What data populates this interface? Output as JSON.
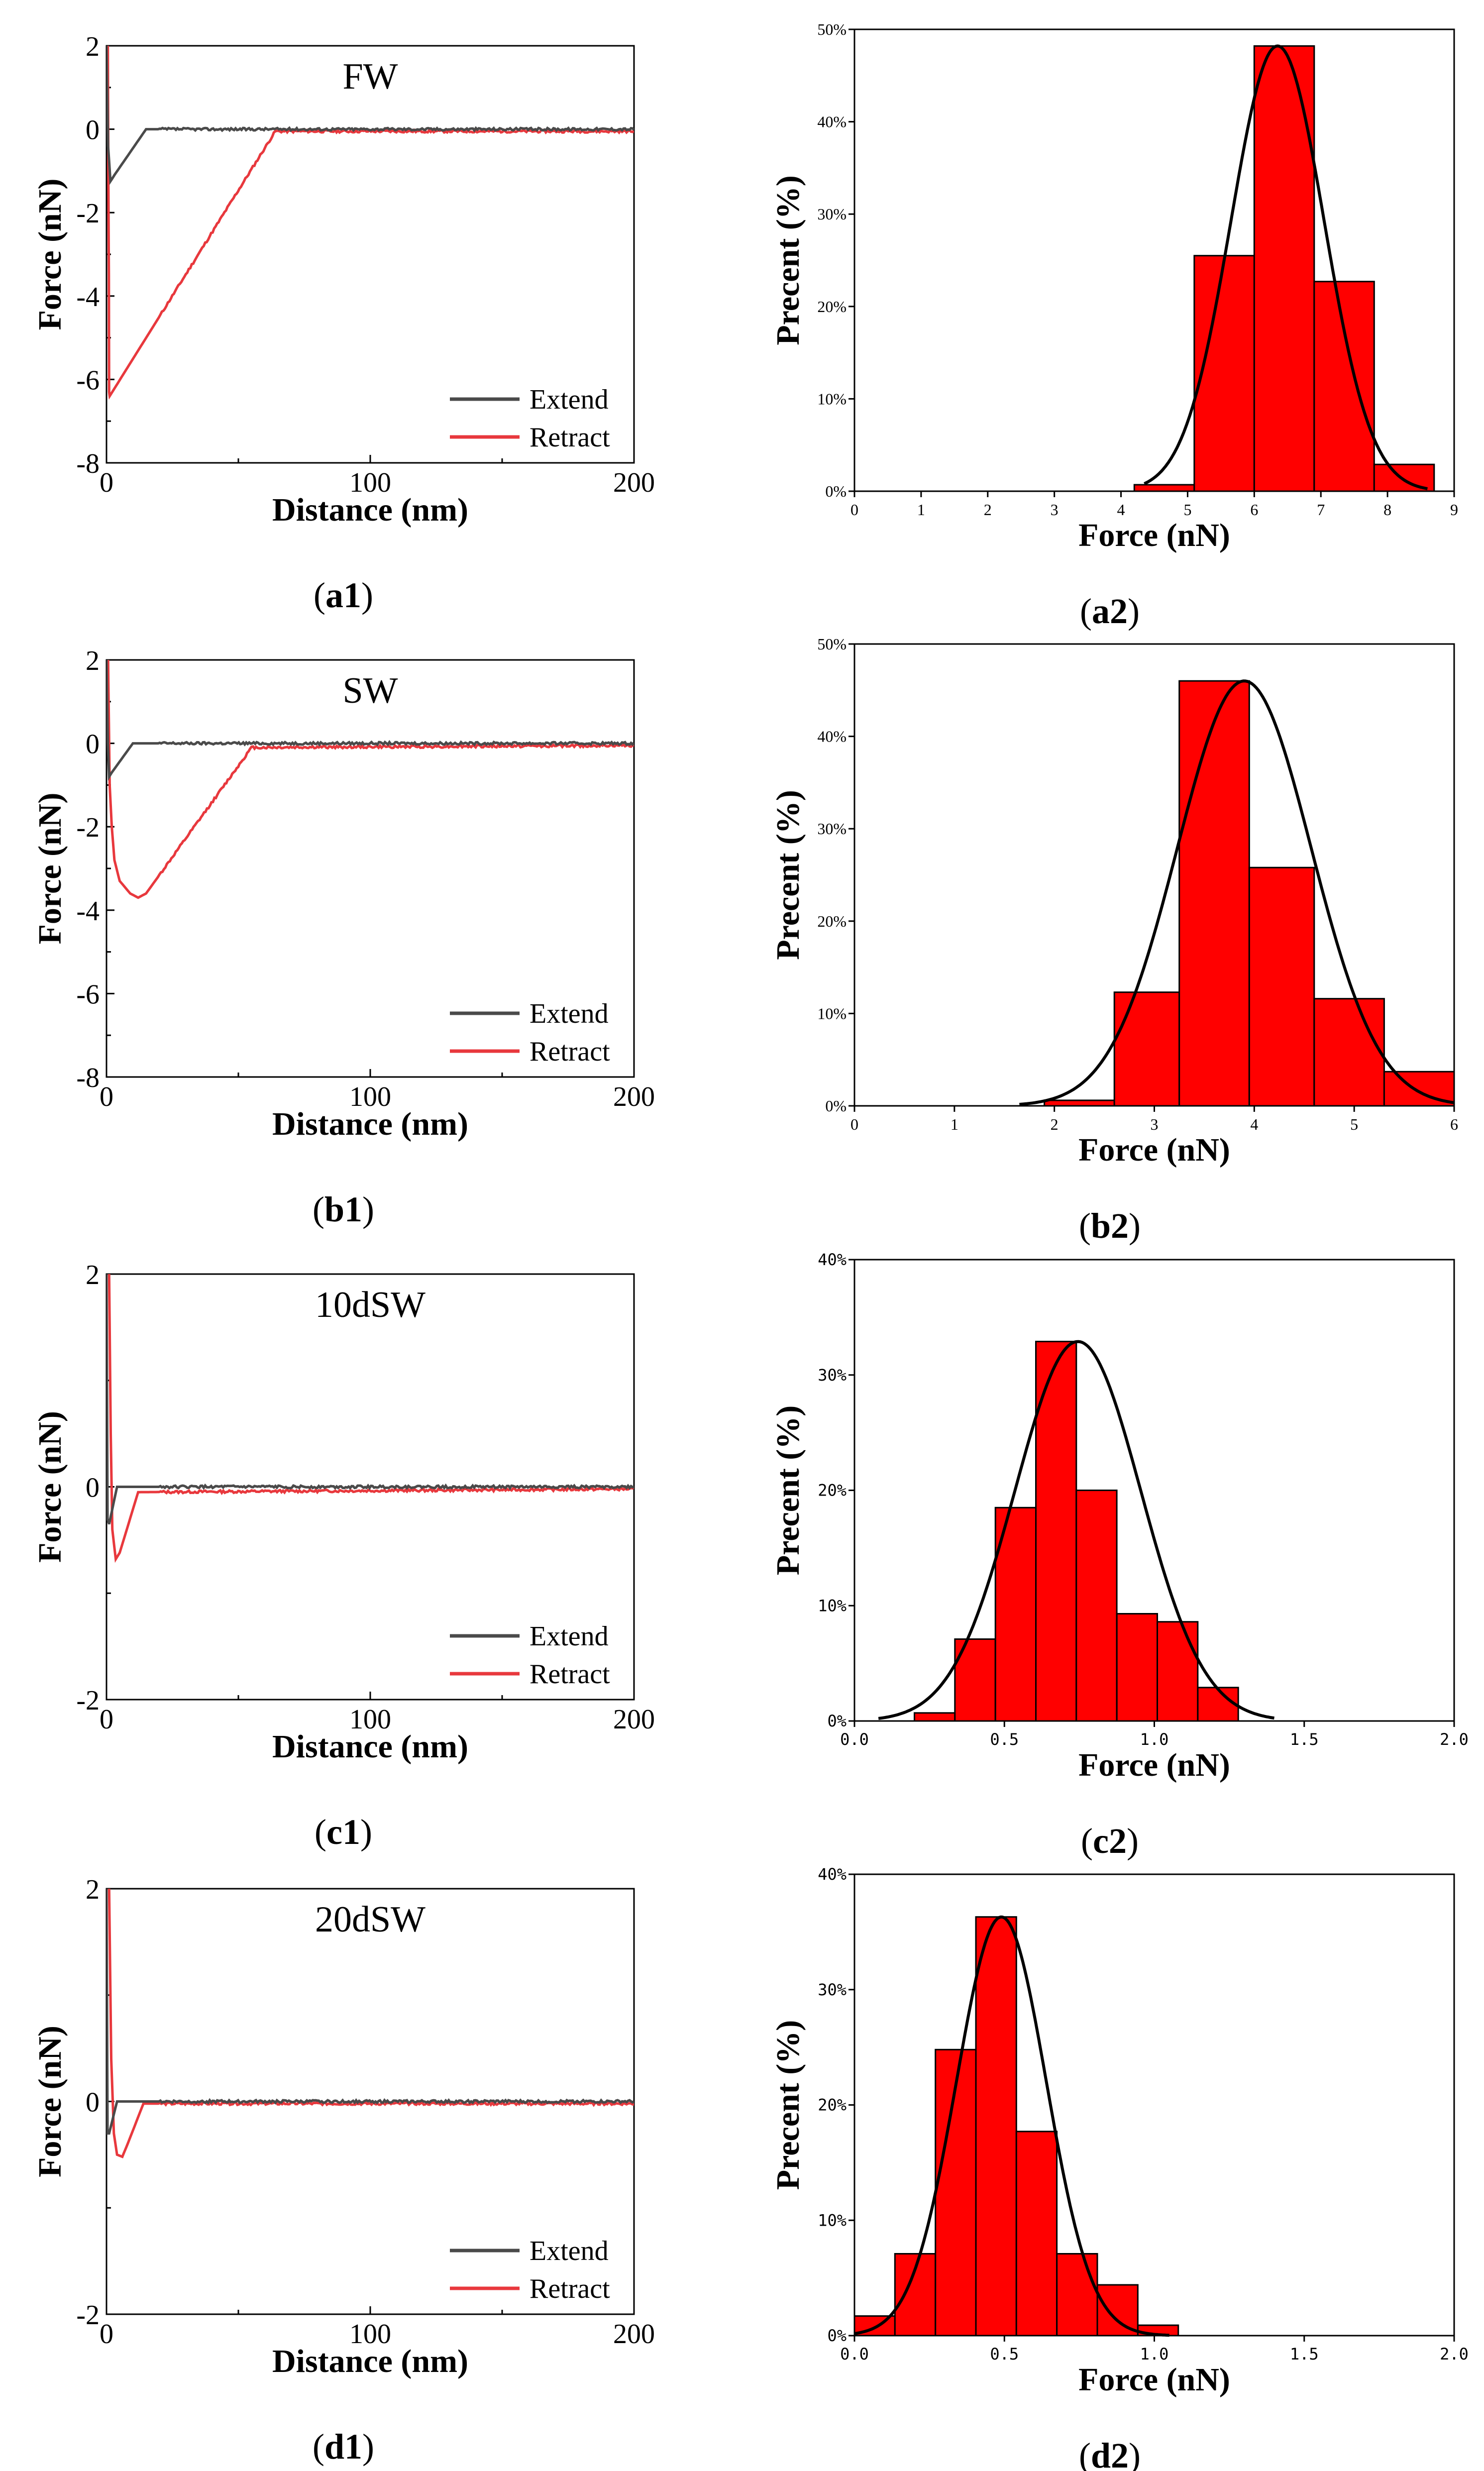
{
  "figure": {
    "left_panels": [
      {
        "id": "a1",
        "sample": "FW",
        "xlabel": "Distance (nm)",
        "ylabel": "Force (nN)",
        "ylim": [
          -8,
          2
        ],
        "yticks": [
          "2",
          "0",
          "-2",
          "-4",
          "-6",
          "-8"
        ],
        "xlim": [
          0,
          200
        ],
        "xticks": [
          "0",
          "100",
          "200"
        ],
        "legend": [
          "Extend",
          "Retract"
        ],
        "caption_prefix": "(",
        "caption_main": "a1",
        "caption_suffix": ")",
        "extend_curve": [
          [
            0,
            2.0
          ],
          [
            0.6,
            -0.4
          ],
          [
            1.5,
            -1.25
          ],
          [
            3,
            -1.1
          ],
          [
            15,
            0.0
          ],
          [
            200,
            0.0
          ]
        ],
        "retract_curve": [
          [
            0.5,
            2.0
          ],
          [
            0.7,
            -1.0
          ],
          [
            0.9,
            -3.5
          ],
          [
            1.0,
            -6.3
          ],
          [
            1.2,
            -6.4
          ],
          [
            64,
            -0.05
          ],
          [
            200,
            -0.05
          ]
        ]
      },
      {
        "id": "b1",
        "sample": "SW",
        "xlabel": "Distance (nm)",
        "ylabel": "Force (nN)",
        "ylim": [
          -8,
          2
        ],
        "yticks": [
          "2",
          "0",
          "-2",
          "-4",
          "-6",
          "-8"
        ],
        "xlim": [
          0,
          200
        ],
        "xticks": [
          "0",
          "100",
          "200"
        ],
        "legend": [
          "Extend",
          "Retract"
        ],
        "caption_prefix": "(",
        "caption_main": "b1",
        "caption_suffix": ")",
        "extend_curve": [
          [
            0,
            2.0
          ],
          [
            0.5,
            0.0
          ],
          [
            1,
            -0.8
          ],
          [
            2,
            -0.7
          ],
          [
            10,
            0.0
          ],
          [
            200,
            0.0
          ]
        ],
        "retract_curve": [
          [
            0.6,
            2.0
          ],
          [
            1.2,
            -1.0
          ],
          [
            2,
            -2.0
          ],
          [
            3,
            -2.8
          ],
          [
            5,
            -3.3
          ],
          [
            9,
            -3.6
          ],
          [
            12,
            -3.7
          ],
          [
            15,
            -3.6
          ],
          [
            55,
            -0.1
          ],
          [
            200,
            -0.05
          ]
        ]
      },
      {
        "id": "c1",
        "sample": "10dSW",
        "xlabel": "Distance (nm)",
        "ylabel": "Force (nN)",
        "ylim": [
          -2,
          2
        ],
        "yticks": [
          "2",
          "0",
          "-2"
        ],
        "xlim": [
          0,
          200
        ],
        "xticks": [
          "0",
          "100",
          "200"
        ],
        "legend": [
          "Extend",
          "Retract"
        ],
        "caption_prefix": "(",
        "caption_main": "c1",
        "caption_suffix": ")",
        "extend_curve": [
          [
            0,
            2.0
          ],
          [
            0.4,
            -0.3
          ],
          [
            1.0,
            -0.35
          ],
          [
            4,
            0.0
          ],
          [
            200,
            0.0
          ]
        ],
        "retract_curve": [
          [
            1.0,
            2.0
          ],
          [
            1.6,
            0.5
          ],
          [
            2.2,
            -0.4
          ],
          [
            3.5,
            -0.68
          ],
          [
            5,
            -0.62
          ],
          [
            12,
            -0.05
          ],
          [
            200,
            -0.02
          ]
        ]
      },
      {
        "id": "d1",
        "sample": "20dSW",
        "xlabel": "Distance (nm)",
        "ylabel": "Force (nN)",
        "ylim": [
          -2,
          2
        ],
        "yticks": [
          "2",
          "0",
          "-2"
        ],
        "xlim": [
          0,
          200
        ],
        "xticks": [
          "0",
          "100",
          "200"
        ],
        "legend": [
          "Extend",
          "Retract"
        ],
        "caption_prefix": "(",
        "caption_main": "d1",
        "caption_suffix": ")",
        "extend_curve": [
          [
            0,
            2.0
          ],
          [
            0.4,
            -0.3
          ],
          [
            1.0,
            -0.3
          ],
          [
            4,
            0.0
          ],
          [
            200,
            0.0
          ]
        ],
        "retract_curve": [
          [
            1.0,
            2.0
          ],
          [
            1.8,
            0.4
          ],
          [
            2.8,
            -0.3
          ],
          [
            4,
            -0.5
          ],
          [
            6,
            -0.52
          ],
          [
            8,
            -0.4
          ],
          [
            14,
            -0.02
          ],
          [
            200,
            -0.02
          ]
        ]
      }
    ],
    "right_panels": [
      {
        "id": "a2",
        "tick_font": "serif",
        "xlabel": "Force (nN)",
        "ylabel": "Precent (%)",
        "xlim": [
          0,
          9
        ],
        "xticks": [
          "0",
          "1",
          "2",
          "3",
          "4",
          "5",
          "6",
          "7",
          "8",
          "9"
        ],
        "ylim": [
          0,
          50
        ],
        "yticks": [
          "0%",
          "10%",
          "20%",
          "30%",
          "40%",
          "50%"
        ],
        "caption_prefix": "(",
        "caption_main": "a2",
        "caption_suffix": ")",
        "bars": [
          {
            "x0": 4.2,
            "x1": 5.1,
            "value": 0.7
          },
          {
            "x0": 5.1,
            "x1": 6.0,
            "value": 25.5
          },
          {
            "x0": 6.0,
            "x1": 6.9,
            "value": 48.2
          },
          {
            "x0": 6.9,
            "x1": 7.8,
            "value": 22.7
          },
          {
            "x0": 7.8,
            "x1": 8.7,
            "value": 2.9
          }
        ],
        "fit": {
          "mean": 6.35,
          "sigma": 0.7,
          "peak": 48.2,
          "from": 4.35,
          "to": 8.6
        }
      },
      {
        "id": "b2",
        "tick_font": "serif",
        "xlabel": "Force (nN)",
        "ylabel": "Precent (%)",
        "xlim": [
          0,
          6
        ],
        "xticks": [
          "0",
          "1",
          "2",
          "3",
          "4",
          "5",
          "6"
        ],
        "ylim": [
          0,
          50
        ],
        "yticks": [
          "0%",
          "10%",
          "20%",
          "30%",
          "40%",
          "50%"
        ],
        "caption_prefix": "(",
        "caption_main": "b2",
        "caption_suffix": ")",
        "bars": [
          {
            "x0": 1.9,
            "x1": 2.6,
            "value": 0.6
          },
          {
            "x0": 2.6,
            "x1": 3.25,
            "value": 12.3
          },
          {
            "x0": 3.25,
            "x1": 3.95,
            "value": 46.0
          },
          {
            "x0": 3.95,
            "x1": 4.6,
            "value": 25.8
          },
          {
            "x0": 4.6,
            "x1": 5.3,
            "value": 11.6
          },
          {
            "x0": 5.3,
            "x1": 6.0,
            "value": 3.7
          }
        ],
        "fit": {
          "mean": 3.9,
          "sigma": 0.67,
          "peak": 46.0,
          "from": 1.65,
          "to": 6.0
        }
      },
      {
        "id": "c2",
        "tick_font": "mono",
        "xlabel": "Force (nN)",
        "ylabel": "Precent (%)",
        "xlim": [
          0,
          2
        ],
        "xticks": [
          "0.0",
          "0.5",
          "1.0",
          "1.5",
          "2.0"
        ],
        "ylim": [
          0,
          40
        ],
        "yticks": [
          "0%",
          "10%",
          "20%",
          "30%",
          "40%"
        ],
        "caption_prefix": "(",
        "caption_main": "c2",
        "caption_suffix": ")",
        "bars": [
          {
            "x0": 0.2,
            "x1": 0.335,
            "value": 0.7
          },
          {
            "x0": 0.335,
            "x1": 0.47,
            "value": 7.1
          },
          {
            "x0": 0.47,
            "x1": 0.605,
            "value": 18.5
          },
          {
            "x0": 0.605,
            "x1": 0.74,
            "value": 32.9
          },
          {
            "x0": 0.74,
            "x1": 0.875,
            "value": 20.0
          },
          {
            "x0": 0.875,
            "x1": 1.01,
            "value": 9.3
          },
          {
            "x0": 1.01,
            "x1": 1.145,
            "value": 8.6
          },
          {
            "x0": 1.145,
            "x1": 1.28,
            "value": 2.9
          }
        ],
        "fit": {
          "mean": 0.745,
          "sigma": 0.21,
          "peak": 32.9,
          "from": 0.08,
          "to": 1.4
        }
      },
      {
        "id": "d2",
        "tick_font": "mono",
        "xlabel": "Force (nN)",
        "ylabel": "Precent (%)",
        "xlim": [
          0,
          2
        ],
        "xticks": [
          "0.0",
          "0.5",
          "1.0",
          "1.5",
          "2.0"
        ],
        "ylim": [
          0,
          40
        ],
        "yticks": [
          "0%",
          "10%",
          "20%",
          "30%",
          "40%"
        ],
        "caption_prefix": "(",
        "caption_main": "d2",
        "caption_suffix": ")",
        "bars": [
          {
            "x0": 0.0,
            "x1": 0.135,
            "value": 1.7
          },
          {
            "x0": 0.135,
            "x1": 0.27,
            "value": 7.1
          },
          {
            "x0": 0.27,
            "x1": 0.405,
            "value": 24.8
          },
          {
            "x0": 0.405,
            "x1": 0.54,
            "value": 36.3
          },
          {
            "x0": 0.54,
            "x1": 0.675,
            "value": 17.7
          },
          {
            "x0": 0.675,
            "x1": 0.81,
            "value": 7.1
          },
          {
            "x0": 0.81,
            "x1": 0.945,
            "value": 4.4
          },
          {
            "x0": 0.945,
            "x1": 1.08,
            "value": 0.9
          }
        ],
        "fit": {
          "mean": 0.49,
          "sigma": 0.15,
          "peak": 36.3,
          "from": 0.0,
          "to": 1.05
        }
      }
    ]
  },
  "colors": {
    "bar_fill": "#ff0000",
    "bar_edge": "#000000",
    "extend_line": "#4a4a4a",
    "retract_line": "#e8383d",
    "fit_line": "#000000",
    "axis": "#000000"
  },
  "chart_data": [
    {
      "type": "line",
      "panel": "a1",
      "title": "FW",
      "xlabel": "Distance (nm)",
      "ylabel": "Force (nN)",
      "xlim": [
        0,
        200
      ],
      "ylim": [
        -8,
        2
      ],
      "series": [
        {
          "name": "Extend",
          "x": [
            0,
            0.6,
            1.5,
            3,
            15,
            200
          ],
          "y": [
            2.0,
            -0.4,
            -1.25,
            -1.1,
            0.0,
            0.0
          ]
        },
        {
          "name": "Retract",
          "x": [
            0.5,
            1.0,
            1.2,
            64,
            200
          ],
          "y": [
            2.0,
            -6.3,
            -6.4,
            -0.05,
            -0.05
          ]
        }
      ]
    },
    {
      "type": "bar",
      "panel": "a2",
      "xlabel": "Force (nN)",
      "ylabel": "Precent (%)",
      "xlim": [
        0,
        9
      ],
      "ylim": [
        0,
        50
      ],
      "categories": [
        "4.2-5.1",
        "5.1-6.0",
        "6.0-6.9",
        "6.9-7.8",
        "7.8-8.7"
      ],
      "values": [
        0.7,
        25.5,
        48.2,
        22.7,
        2.9
      ],
      "fit": "Gaussian, mean ≈ 6.35 nN"
    },
    {
      "type": "line",
      "panel": "b1",
      "title": "SW",
      "xlabel": "Distance (nm)",
      "ylabel": "Force (nN)",
      "xlim": [
        0,
        200
      ],
      "ylim": [
        -8,
        2
      ],
      "series": [
        {
          "name": "Extend",
          "x": [
            0,
            1,
            2,
            10,
            200
          ],
          "y": [
            2.0,
            -0.8,
            -0.7,
            0.0,
            0.0
          ]
        },
        {
          "name": "Retract",
          "x": [
            0.6,
            5,
            12,
            55,
            200
          ],
          "y": [
            2.0,
            -3.3,
            -3.7,
            -0.1,
            -0.05
          ]
        }
      ]
    },
    {
      "type": "bar",
      "panel": "b2",
      "xlabel": "Force (nN)",
      "ylabel": "Precent (%)",
      "xlim": [
        0,
        6
      ],
      "ylim": [
        0,
        50
      ],
      "categories": [
        "1.9-2.6",
        "2.6-3.25",
        "3.25-3.95",
        "3.95-4.6",
        "4.6-5.3",
        "5.3-6.0"
      ],
      "values": [
        0.6,
        12.3,
        46.0,
        25.8,
        11.6,
        3.7
      ],
      "fit": "Gaussian, mean ≈ 3.9 nN"
    },
    {
      "type": "line",
      "panel": "c1",
      "title": "10dSW",
      "xlabel": "Distance (nm)",
      "ylabel": "Force (nN)",
      "xlim": [
        0,
        200
      ],
      "ylim": [
        -2,
        2
      ],
      "series": [
        {
          "name": "Extend",
          "x": [
            0,
            1,
            4,
            200
          ],
          "y": [
            2.0,
            -0.35,
            0.0,
            0.0
          ]
        },
        {
          "name": "Retract",
          "x": [
            1,
            3.5,
            12,
            200
          ],
          "y": [
            2.0,
            -0.68,
            -0.05,
            -0.02
          ]
        }
      ]
    },
    {
      "type": "bar",
      "panel": "c2",
      "xlabel": "Force (nN)",
      "ylabel": "Precent (%)",
      "xlim": [
        0,
        2
      ],
      "ylim": [
        0,
        40
      ],
      "categories": [
        "0.20-0.34",
        "0.34-0.47",
        "0.47-0.61",
        "0.61-0.74",
        "0.74-0.88",
        "0.88-1.01",
        "1.01-1.15",
        "1.15-1.28"
      ],
      "values": [
        0.7,
        7.1,
        18.5,
        32.9,
        20.0,
        9.3,
        8.6,
        2.9
      ],
      "fit": "Gaussian, mean ≈ 0.745 nN"
    },
    {
      "type": "line",
      "panel": "d1",
      "title": "20dSW",
      "xlabel": "Distance (nm)",
      "ylabel": "Force (nN)",
      "xlim": [
        0,
        200
      ],
      "ylim": [
        -2,
        2
      ],
      "series": [
        {
          "name": "Extend",
          "x": [
            0,
            1,
            4,
            200
          ],
          "y": [
            2.0,
            -0.3,
            0.0,
            0.0
          ]
        },
        {
          "name": "Retract",
          "x": [
            1,
            6,
            14,
            200
          ],
          "y": [
            2.0,
            -0.52,
            -0.02,
            -0.02
          ]
        }
      ]
    },
    {
      "type": "bar",
      "panel": "d2",
      "xlabel": "Force (nN)",
      "ylabel": "Precent (%)",
      "xlim": [
        0,
        2
      ],
      "ylim": [
        0,
        40
      ],
      "categories": [
        "0.00-0.14",
        "0.14-0.27",
        "0.27-0.41",
        "0.41-0.54",
        "0.54-0.68",
        "0.68-0.81",
        "0.81-0.95",
        "0.95-1.08"
      ],
      "values": [
        1.7,
        7.1,
        24.8,
        36.3,
        17.7,
        7.1,
        4.4,
        0.9
      ],
      "fit": "Gaussian, mean ≈ 0.49 nN"
    }
  ]
}
